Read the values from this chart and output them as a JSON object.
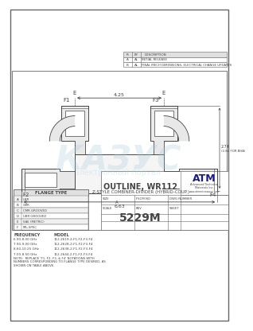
{
  "bg_color": "#ffffff",
  "border_color": "#666666",
  "drawing_color": "#444444",
  "light_gray": "#cccccc",
  "med_gray": "#aaaaaa",
  "title": "OUTLINE, WR112",
  "subtitle": "Z-STYLE COMBINER-DIVIDER (HYBRID-COUP.)",
  "part_number": "5229M",
  "frequency_data": [
    {
      "freq": "6.90-8.00 GHz",
      "model": "112-2619-2-F1-F2-F3-F4"
    },
    {
      "freq": "7.90-9.00 GHz",
      "model": "112-2628-2-F1-F2-F3-F4"
    },
    {
      "freq": "8.60-10.25 GHz",
      "model": "112-2638-2-F1-F2-F3-F4"
    },
    {
      "freq": "7.00-8.50 GHz",
      "model": "112-2644-2-F1-F2-F3-F4"
    }
  ],
  "dim_overall": "6.63",
  "dim_center": "4.25",
  "dim_height_val": "2.74",
  "dim_height_bha": "(2.84 FOR BHA)",
  "note_text": "NOTE:  REPLACE 'F1, F2, F3, & F4' NOTATIONS WITH\nNUMBERS CORRESPONDING TO FLANGE TYPE DESIRED, AS\nSHOWN ON TABLE ABOVE.",
  "flanges_table": [
    [
      "A",
      "UBR"
    ],
    [
      "B",
      "CMR"
    ],
    [
      "C",
      "CMR GROOVED"
    ],
    [
      "D",
      "UBR GROOVED"
    ],
    [
      "E",
      "SAE (METRIC)"
    ],
    [
      "F",
      "MIL-SPEC"
    ]
  ],
  "revision_rows": [
    [
      "A",
      "AL",
      "INITIAL RELEASE"
    ],
    [
      "B",
      "AL",
      "FINAL MECH DIMENSIONS, ELECTRICAL CHANGE UPDATES"
    ]
  ],
  "watermark": "КАЗУС",
  "watermark_sub": "электронный портал",
  "watermark_color": "#aaccdd",
  "watermark_alpha": 0.3
}
